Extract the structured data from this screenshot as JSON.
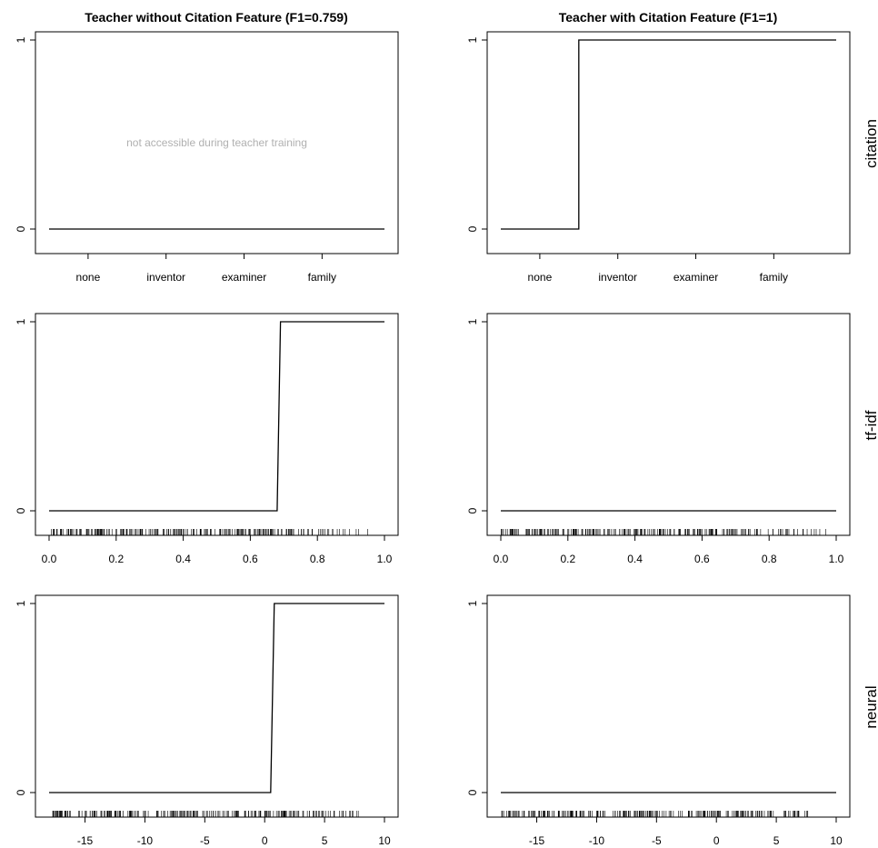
{
  "figure": {
    "column_titles": [
      "Teacher without Citation Feature (F1=0.759)",
      "Teacher with Citation Feature (F1=1)"
    ],
    "row_labels": [
      "citation",
      "tf-idf",
      "neural"
    ]
  },
  "chart_data": [
    {
      "type": "line",
      "subtype": "step",
      "panel": "citation / without citation",
      "categories": [
        "none",
        "inventor",
        "examiner",
        "family"
      ],
      "x": [
        0,
        3
      ],
      "y": [
        0,
        0
      ],
      "yticks": [
        "0",
        "1"
      ],
      "ylim": [
        0,
        1
      ],
      "annotation": "not accessible during teacher training"
    },
    {
      "type": "line",
      "subtype": "step",
      "panel": "citation / with citation",
      "categories": [
        "none",
        "inventor",
        "examiner",
        "family"
      ],
      "x": [
        0,
        0.5,
        0.5,
        3
      ],
      "y": [
        0,
        0,
        1,
        1
      ],
      "yticks": [
        "0",
        "1"
      ],
      "ylim": [
        0,
        1
      ]
    },
    {
      "type": "line",
      "subtype": "step",
      "panel": "tf-idf / without citation",
      "x": [
        0,
        0.68,
        0.69,
        1.0
      ],
      "y": [
        0,
        0,
        1,
        1
      ],
      "xticks": [
        "0.0",
        "0.2",
        "0.4",
        "0.6",
        "0.8",
        "1.0"
      ],
      "xlim": [
        0,
        1
      ],
      "yticks": [
        "0",
        "1"
      ],
      "ylim": [
        0,
        1
      ],
      "rug": [
        0.0,
        0.75,
        0.97
      ]
    },
    {
      "type": "line",
      "subtype": "step",
      "panel": "tf-idf / with citation",
      "x": [
        0,
        1.0
      ],
      "y": [
        0,
        0
      ],
      "xticks": [
        "0.0",
        "0.2",
        "0.4",
        "0.6",
        "0.8",
        "1.0"
      ],
      "xlim": [
        0,
        1
      ],
      "yticks": [
        "0",
        "1"
      ],
      "ylim": [
        0,
        1
      ],
      "rug": [
        0.0,
        0.75,
        0.97
      ]
    },
    {
      "type": "line",
      "subtype": "step",
      "panel": "neural / without citation",
      "x": [
        -18,
        0.5,
        0.8,
        10
      ],
      "y": [
        0,
        0,
        1,
        1
      ],
      "xticks": [
        "-15",
        "-10",
        "-5",
        "0",
        "5",
        "10"
      ],
      "xlim": [
        -18,
        10
      ],
      "yticks": [
        "0",
        "1"
      ],
      "ylim": [
        0,
        1
      ],
      "rug": [
        -18,
        4,
        8
      ]
    },
    {
      "type": "line",
      "subtype": "step",
      "panel": "neural / with citation",
      "x": [
        -18,
        10
      ],
      "y": [
        0,
        0
      ],
      "xticks": [
        "-15",
        "-10",
        "-5",
        "0",
        "5",
        "10"
      ],
      "xlim": [
        -18,
        10
      ],
      "yticks": [
        "0",
        "1"
      ],
      "ylim": [
        0,
        1
      ],
      "rug": [
        -18,
        4,
        8
      ]
    }
  ]
}
